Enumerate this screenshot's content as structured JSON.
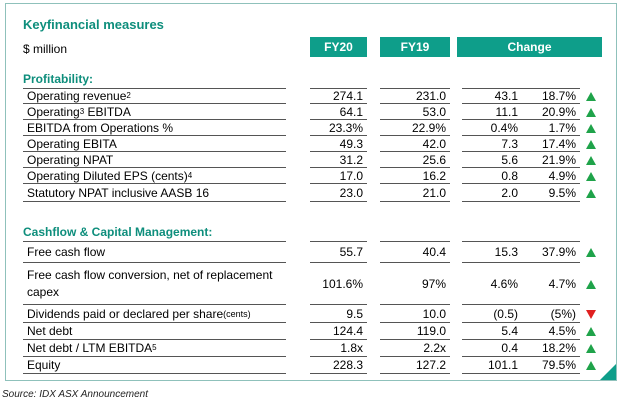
{
  "title": "Keyfinancial measures",
  "unit": "$ million",
  "headers": {
    "fy20": "FY20",
    "fy19": "FY19",
    "change": "Change"
  },
  "sections": {
    "profitability": "Profitability:",
    "cashflow": "Cashflow & Capital Management:"
  },
  "rows": [
    {
      "label": "Operating revenue",
      "sup": "2",
      "fy20": "274.1",
      "fy19": "231.0",
      "change": "43.1",
      "pct": "18.7%",
      "dir": "up"
    },
    {
      "label_pre": "Operating",
      "sup": "3",
      "label_post": " EBITDA",
      "fy20": "64.1",
      "fy19": "53.0",
      "change": "11.1",
      "pct": "20.9%",
      "dir": "up"
    },
    {
      "label": "EBITDA from Operations %",
      "fy20": "23.3%",
      "fy19": "22.9%",
      "change": "0.4%",
      "pct": "1.7%",
      "dir": "up"
    },
    {
      "label": "Operating EBITA",
      "fy20": "49.3",
      "fy19": "42.0",
      "change": "7.3",
      "pct": "17.4%",
      "dir": "up"
    },
    {
      "label": "Operating NPAT",
      "fy20": "31.2",
      "fy19": "25.6",
      "change": "5.6",
      "pct": "21.9%",
      "dir": "up"
    },
    {
      "label": "Operating Diluted EPS (cents)",
      "sup": "4",
      "fy20": "17.0",
      "fy19": "16.2",
      "change": "0.8",
      "pct": "4.9%",
      "dir": "up"
    },
    {
      "label": "Statutory NPAT inclusive AASB 16",
      "fy20": "23.0",
      "fy19": "21.0",
      "change": "2.0",
      "pct": "9.5%",
      "dir": "up"
    },
    {
      "label": "Free cash flow",
      "fy20": "55.7",
      "fy19": "40.4",
      "change": "15.3",
      "pct": "37.9%",
      "dir": "up"
    },
    {
      "label_line1": "Free cash flow conversion, net of replacement",
      "label_line2": "capex",
      "fy20": "101.6%",
      "fy19": "97%",
      "change": "4.6%",
      "pct": "4.7%",
      "dir": "up"
    },
    {
      "label": "Dividends paid or declared per share",
      "small": "(cents)",
      "fy20": "9.5",
      "fy19": "10.0",
      "change": "(0.5)",
      "pct": "(5%)",
      "dir": "down"
    },
    {
      "label": "Net debt",
      "fy20": "124.4",
      "fy19": "119.0",
      "change": "5.4",
      "pct": "4.5%",
      "dir": "up"
    },
    {
      "label": "Net debt / LTM EBITDA",
      "sup": "5",
      "fy20": "1.8x",
      "fy19": "2.2x",
      "change": "0.4",
      "pct": "18.2%",
      "dir": "up"
    },
    {
      "label": "Equity",
      "fy20": "228.3",
      "fy19": "127.2",
      "change": "101.1",
      "pct": "79.5%",
      "dir": "up"
    }
  ],
  "source": "Source: IDX ASX Announcement",
  "colors": {
    "accent": "#0e9e8a",
    "up": "#1fa34a",
    "down": "#e02020"
  }
}
